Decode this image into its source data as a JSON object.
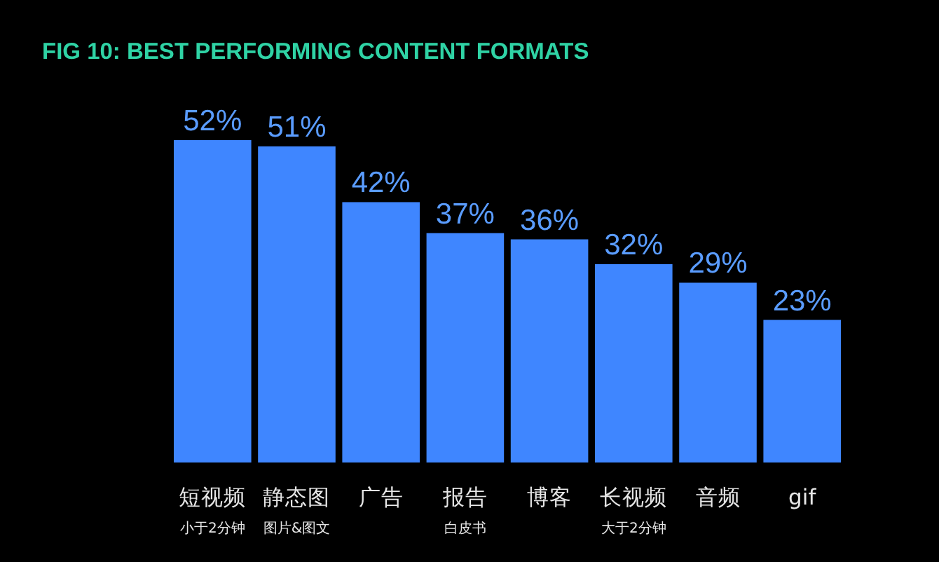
{
  "chart_data": {
    "type": "bar",
    "title": "FIG 10: BEST PERFORMING CONTENT FORMATS",
    "categories": [
      "短视频$_{小于2分钟}$",
      "静态图$_{图片&图文}$",
      "广告",
      "报告$_{白皮书}$",
      "博客",
      "长视频$_{大于2分钟}$",
      "音频",
      "gif"
    ],
    "values": [
      52,
      51,
      42,
      37,
      36,
      32,
      29,
      23
    ],
    "value_labels": [
      "52%",
      "51%",
      "42%",
      "37%",
      "36%",
      "32%",
      "29%",
      "23%"
    ],
    "color": "#3f86ff"
  }
}
